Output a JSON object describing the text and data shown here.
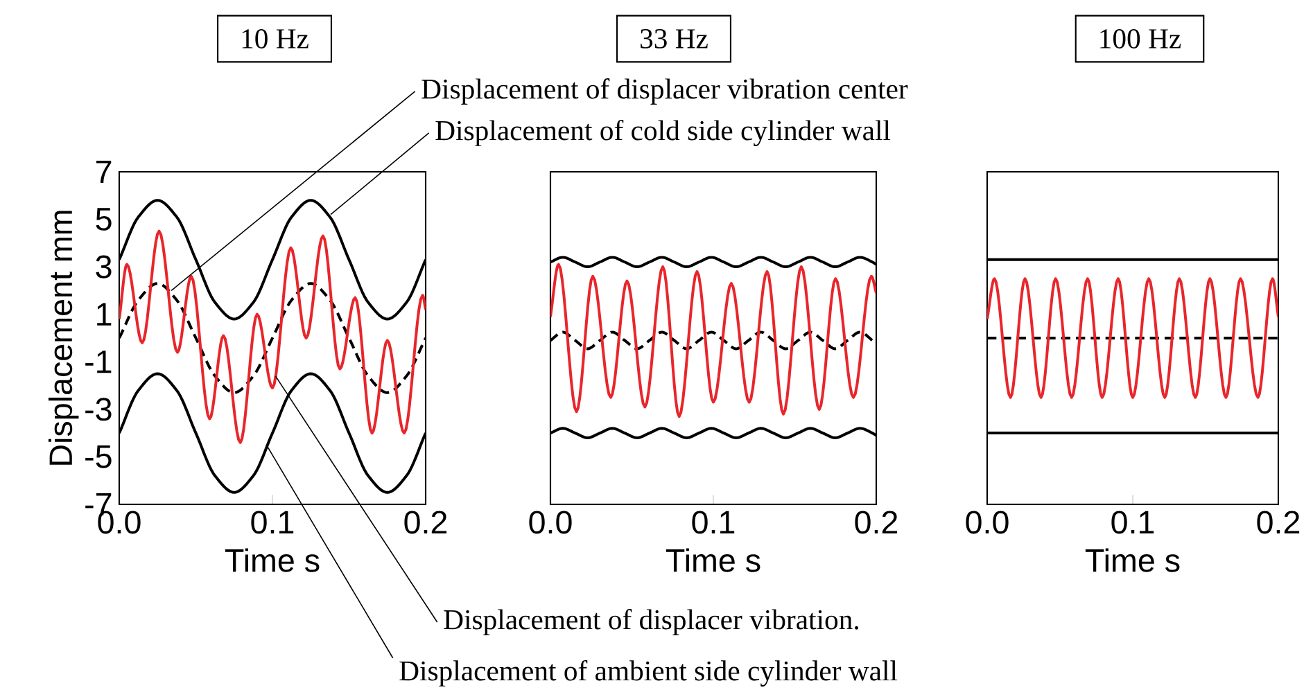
{
  "chart_data": [
    {
      "type": "line",
      "title": "10 Hz",
      "xlabel": "Time s",
      "ylabel": "Displacement mm",
      "xlim": [
        0,
        0.2
      ],
      "ylim": [
        -7,
        7
      ],
      "xticks": [
        {
          "value": 0,
          "label": "0.0"
        },
        {
          "value": 0.1,
          "label": "0.1"
        },
        {
          "value": 0.2,
          "label": "0.2"
        }
      ],
      "yticks": [
        -7,
        -5,
        -3,
        -1,
        1,
        3,
        5,
        7
      ],
      "x": [
        0,
        0.0125,
        0.025,
        0.0375,
        0.05,
        0.0625,
        0.075,
        0.0875,
        0.1,
        0.1125,
        0.125,
        0.1375,
        0.15,
        0.1625,
        0.175,
        0.1875,
        0.2
      ],
      "series": [
        {
          "color": "#000000",
          "values": [
            3.3,
            5.1,
            5.8,
            5.1,
            3.3,
            1.5,
            0.8,
            1.5,
            3.3,
            5.1,
            5.8,
            5.1,
            3.3,
            1.5,
            0.8,
            1.5,
            3.3
          ]
        },
        {
          "color": "#000000",
          "values": [
            -4.0,
            -2.2,
            -1.5,
            -2.2,
            -4.0,
            -5.8,
            -6.5,
            -5.8,
            -4.0,
            -2.2,
            -1.5,
            -2.2,
            -4.0,
            -5.8,
            -6.5,
            -5.8,
            -4.0
          ]
        },
        {
          "color": "#000000",
          "line_style": "dashed",
          "values": [
            0,
            1.6,
            2.3,
            1.6,
            0,
            -1.6,
            -2.3,
            -1.6,
            0,
            1.6,
            2.3,
            1.6,
            0,
            -1.6,
            -2.3,
            -1.6,
            0
          ]
        },
        {
          "color": "#e8262b",
          "x": [
            0,
            0.005,
            0.015,
            0.026,
            0.038,
            0.047,
            0.059,
            0.068,
            0.079,
            0.09,
            0.1,
            0.112,
            0.122,
            0.133,
            0.144,
            0.154,
            0.165,
            0.175,
            0.186,
            0.198,
            0.2
          ],
          "values": [
            0.8,
            3.1,
            -0.2,
            4.5,
            -0.6,
            2.6,
            -3.4,
            0.1,
            -4.4,
            1.0,
            -2.1,
            3.8,
            0.0,
            4.3,
            -1.3,
            1.7,
            -4.0,
            -0.1,
            -4.0,
            1.8,
            1.2
          ]
        }
      ],
      "annotations": [
        {
          "text": "Displacement of displacer vibration center",
          "x": 0.034,
          "y": 2.0
        },
        {
          "text": "Displacement of cold side cylinder wall",
          "x": 0.138,
          "y": 5.2
        },
        {
          "text": "Displacement of displacer vibration.",
          "x": 0.102,
          "y": -1.6
        },
        {
          "text": "Displacement of ambient side cylinder wall",
          "x": 0.097,
          "y": -4.6
        }
      ]
    },
    {
      "type": "line",
      "title": "33 Hz",
      "xlabel": "Time s",
      "xlim": [
        0,
        0.2
      ],
      "ylim": [
        -7,
        7
      ],
      "tick_labels": "x",
      "xticks": [
        {
          "value": 0,
          "label": "0.0"
        },
        {
          "value": 0.1,
          "label": "0.1"
        },
        {
          "value": 0.2,
          "label": "0.2"
        }
      ],
      "x": [
        0,
        0.0076,
        0.0152,
        0.0228,
        0.0304,
        0.038,
        0.0456,
        0.0532,
        0.0608,
        0.0684,
        0.076,
        0.0836,
        0.0912,
        0.0988,
        0.1064,
        0.114,
        0.1216,
        0.1292,
        0.1368,
        0.1444,
        0.152,
        0.1596,
        0.1672,
        0.1748,
        0.1824,
        0.19,
        0.1976,
        0.2
      ],
      "series": [
        {
          "color": "#000000",
          "values": [
            3.2,
            3.4,
            3.2,
            3.0,
            3.2,
            3.4,
            3.2,
            3.0,
            3.2,
            3.4,
            3.2,
            3.0,
            3.2,
            3.4,
            3.2,
            3.0,
            3.2,
            3.4,
            3.2,
            3.0,
            3.2,
            3.4,
            3.2,
            3.0,
            3.2,
            3.4,
            3.2,
            3.1
          ]
        },
        {
          "color": "#000000",
          "values": [
            -4.0,
            -3.8,
            -4.0,
            -4.2,
            -4.0,
            -3.8,
            -4.0,
            -4.2,
            -4.0,
            -3.8,
            -4.0,
            -4.2,
            -4.0,
            -3.8,
            -4.0,
            -4.2,
            -4.0,
            -3.8,
            -4.0,
            -4.2,
            -4.0,
            -3.8,
            -4.0,
            -4.2,
            -4.0,
            -3.8,
            -4.0,
            -4.1
          ]
        },
        {
          "color": "#000000",
          "line_style": "dashed",
          "values": [
            -0.1,
            0.25,
            -0.1,
            -0.45,
            -0.1,
            0.25,
            -0.1,
            -0.45,
            -0.1,
            0.25,
            -0.1,
            -0.45,
            -0.1,
            0.25,
            -0.1,
            -0.45,
            -0.1,
            0.25,
            -0.1,
            -0.45,
            -0.1,
            0.25,
            -0.1,
            -0.45,
            -0.1,
            0.25,
            -0.1,
            -0.25
          ]
        },
        {
          "color": "#e8262b",
          "x": [
            0,
            0.005,
            0.016,
            0.026,
            0.037,
            0.047,
            0.058,
            0.069,
            0.079,
            0.09,
            0.1,
            0.111,
            0.122,
            0.133,
            0.143,
            0.154,
            0.165,
            0.175,
            0.186,
            0.197,
            0.2
          ],
          "values": [
            0.9,
            3.1,
            -3.1,
            2.6,
            -2.5,
            2.4,
            -2.9,
            3.0,
            -3.3,
            2.8,
            -2.7,
            2.3,
            -2.7,
            2.8,
            -3.2,
            3.0,
            -3.0,
            2.5,
            -2.5,
            2.6,
            1.9
          ]
        }
      ]
    },
    {
      "type": "line",
      "title": "100 Hz",
      "xlabel": "Time s",
      "xlim": [
        0,
        0.2
      ],
      "ylim": [
        -7,
        7
      ],
      "tick_labels": "x",
      "xticks": [
        {
          "value": 0,
          "label": "0.0"
        },
        {
          "value": 0.1,
          "label": "0.1"
        },
        {
          "value": 0.2,
          "label": "0.2"
        }
      ],
      "x": [
        0,
        0.2
      ],
      "series": [
        {
          "color": "#000000",
          "values": [
            3.3,
            3.3
          ]
        },
        {
          "color": "#000000",
          "values": [
            -4.0,
            -4.0
          ]
        },
        {
          "color": "#000000",
          "line_style": "dashed",
          "values": [
            0,
            0
          ]
        },
        {
          "color": "#e8262b",
          "x": [
            0,
            0.005,
            0.016,
            0.026,
            0.037,
            0.047,
            0.058,
            0.069,
            0.079,
            0.09,
            0.1,
            0.111,
            0.122,
            0.132,
            0.143,
            0.153,
            0.164,
            0.174,
            0.186,
            0.196,
            0.2
          ],
          "values": [
            0.8,
            2.5,
            -2.5,
            2.5,
            -2.5,
            2.5,
            -2.5,
            2.5,
            -2.5,
            2.5,
            -2.5,
            2.5,
            -2.5,
            2.5,
            -2.5,
            2.5,
            -2.5,
            2.5,
            -2.5,
            2.5,
            0.9
          ]
        }
      ]
    }
  ]
}
